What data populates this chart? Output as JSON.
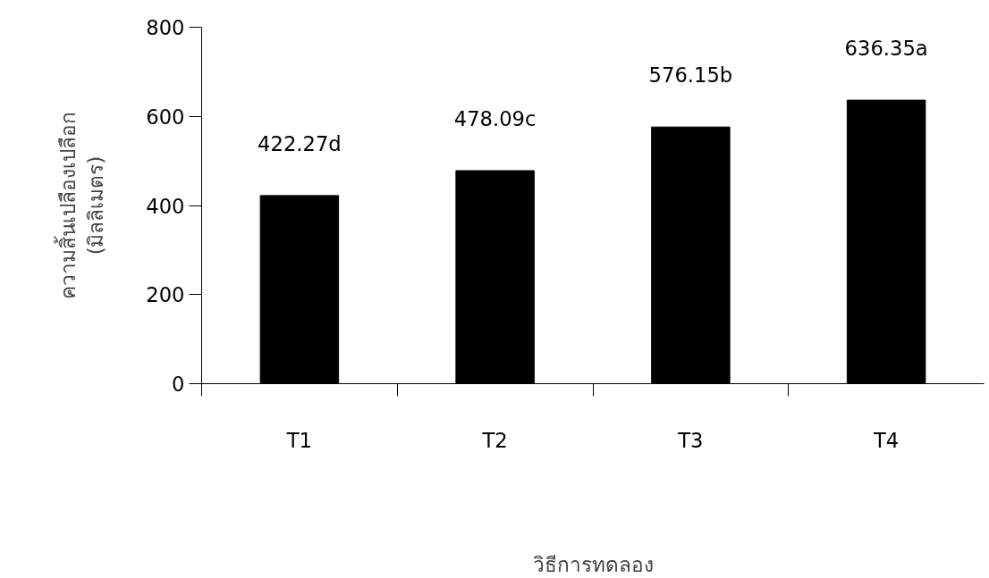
{
  "chart_data": {
    "type": "bar",
    "ylabel": "ความสิ้นเปลืองเปลือก\n(มิลลิเมตร)",
    "xlabel": "วิธีการทดลอง",
    "categories": [
      "T1",
      "T2",
      "T3",
      "T4"
    ],
    "values": [
      422.27,
      478.09,
      576.15,
      636.35
    ],
    "value_labels": [
      "422.27d",
      "478.09c",
      "576.15b",
      "636.35a"
    ],
    "color": "#000000",
    "ylim": [
      0,
      800
    ],
    "yticks": [
      0,
      200,
      400,
      600,
      800
    ]
  }
}
